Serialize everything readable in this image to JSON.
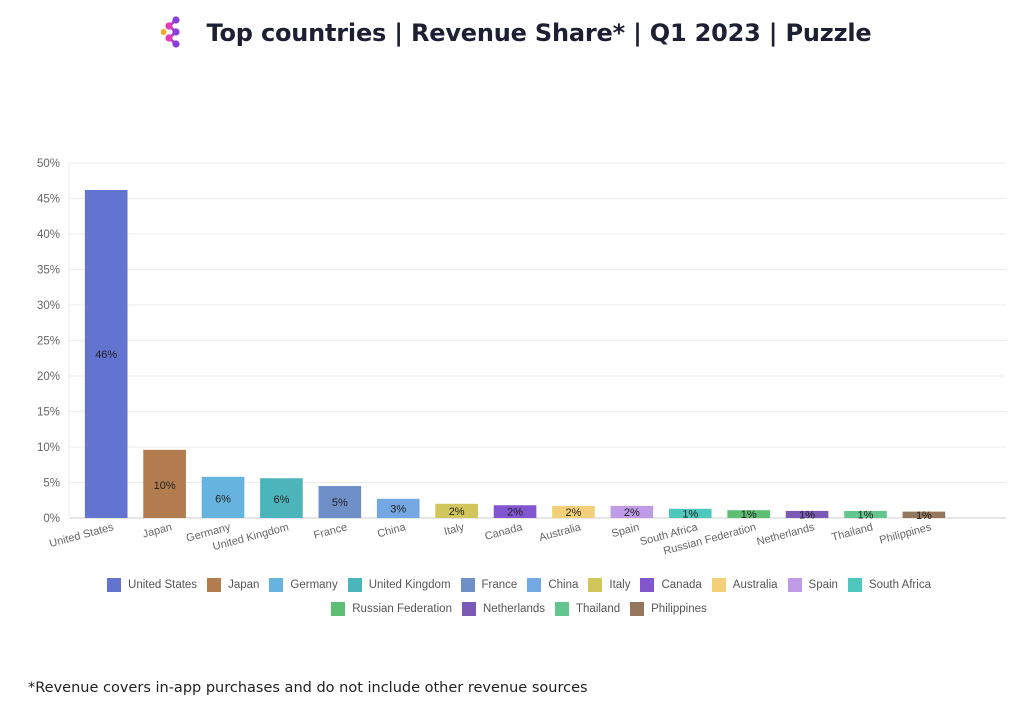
{
  "header": {
    "title": "Top countries | Revenue Share* | Q1 2023 | Puzzle",
    "logo_icon": "dots-network-logo"
  },
  "footnote": "*Revenue covers in-app purchases and do not include other revenue sources",
  "chart_data": {
    "type": "bar",
    "title": "Top countries | Revenue Share* | Q1 2023 | Puzzle",
    "xlabel": "",
    "ylabel": "",
    "ylim": [
      0,
      50
    ],
    "yticks": [
      0,
      5,
      10,
      15,
      20,
      25,
      30,
      35,
      40,
      45,
      50
    ],
    "ytick_labels": [
      "0%",
      "5%",
      "10%",
      "15%",
      "20%",
      "25%",
      "30%",
      "35%",
      "40%",
      "45%",
      "50%"
    ],
    "grid": true,
    "legend_position": "bottom",
    "categories": [
      "United States",
      "Japan",
      "Germany",
      "United Kingdom",
      "France",
      "China",
      "Italy",
      "Canada",
      "Australia",
      "Spain",
      "South Africa",
      "Russian Federation",
      "Netherlands",
      "Thailand",
      "Philippines"
    ],
    "values": [
      46.2,
      9.6,
      5.8,
      5.6,
      4.5,
      2.7,
      2.0,
      1.8,
      1.7,
      1.7,
      1.3,
      1.1,
      1.0,
      1.0,
      0.9
    ],
    "data_labels": [
      "46%",
      "10%",
      "6%",
      "6%",
      "5%",
      "3%",
      "2%",
      "2%",
      "2%",
      "2%",
      "1%",
      "1%",
      "1%",
      "1%",
      "1%"
    ],
    "colors": [
      "#6274d0",
      "#b27c4e",
      "#66b3e0",
      "#4bb5bb",
      "#6e8fc8",
      "#73a8e3",
      "#d0c65c",
      "#8256cf",
      "#f2cf78",
      "#c09be8",
      "#4ec8bd",
      "#5dbf73",
      "#7a5ab5",
      "#63c68e",
      "#94775c"
    ],
    "legend_rows": [
      [
        "United States",
        "Japan",
        "Germany",
        "United Kingdom",
        "France",
        "China",
        "Italy",
        "Canada",
        "Australia",
        "Spain",
        "South Africa"
      ],
      [
        "Russian Federation",
        "Netherlands",
        "Thailand",
        "Philippines"
      ]
    ]
  }
}
